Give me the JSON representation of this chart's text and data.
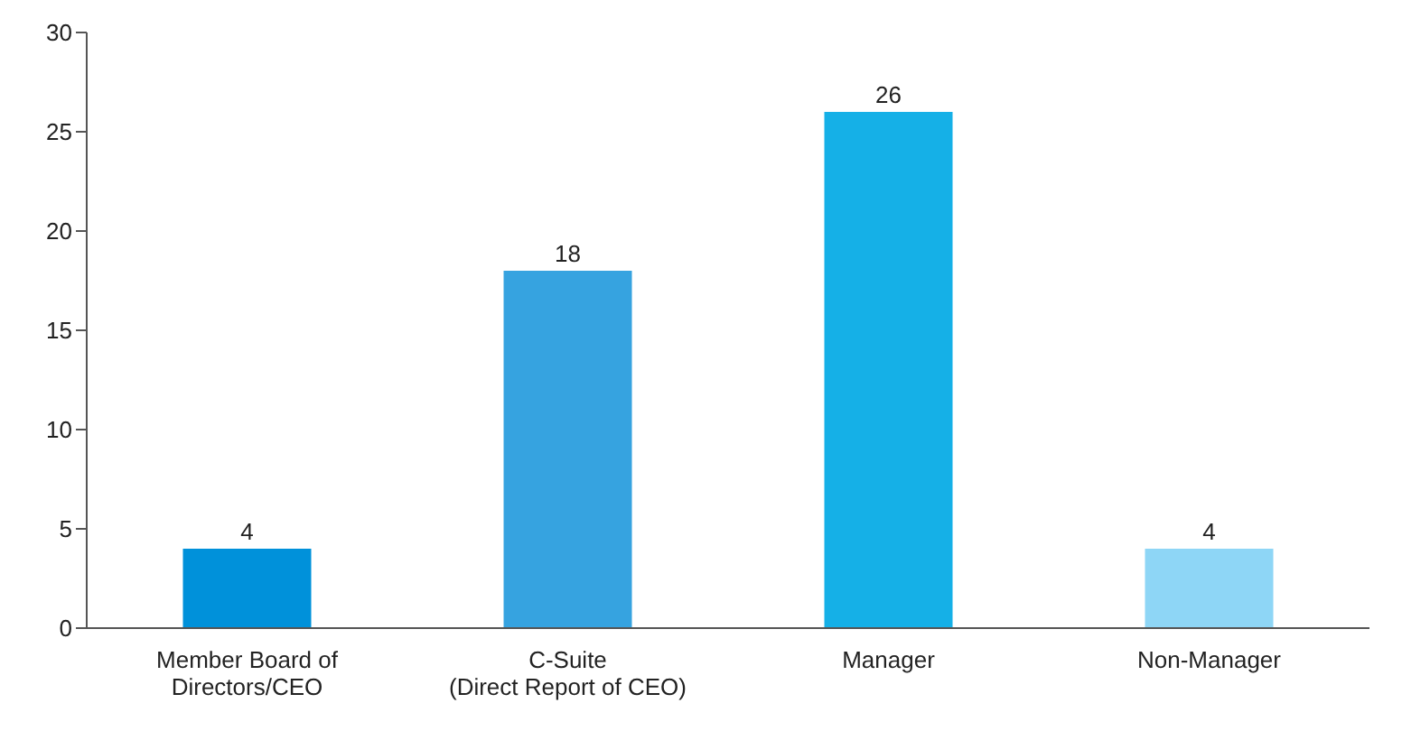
{
  "chart_data": {
    "type": "bar",
    "categories": [
      "Member Board of\nDirectors/CEO",
      "C-Suite\n(Direct Report of CEO)",
      "Manager",
      "Non-Manager"
    ],
    "values": [
      4,
      18,
      26,
      4
    ],
    "colors": [
      "#0091da",
      "#36a3e0",
      "#15b0e7",
      "#8ed6f6"
    ],
    "ylim": [
      0,
      30
    ],
    "yticks": [
      0,
      5,
      10,
      15,
      20,
      25,
      30
    ],
    "grid": false,
    "data_labels": true
  }
}
